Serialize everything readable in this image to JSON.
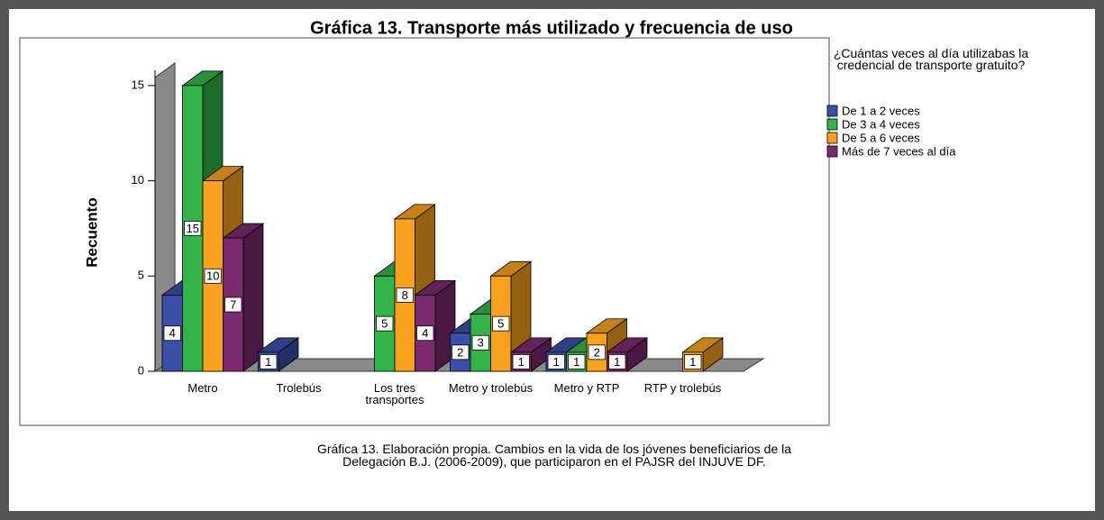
{
  "chart_data": {
    "type": "bar3d",
    "title": "Gráfica 13. Transporte más utilizado y frecuencia de uso",
    "y_label": "Recuento",
    "legend_title": "¿Cuántas veces al día utilizabas la credencial de transporte gratuito?",
    "categories": [
      "Metro",
      "Trolebús",
      "Los tres transportes",
      "Metro y trolebús",
      "Metro y RTP",
      "RTP y trolebús"
    ],
    "series": [
      {
        "name": "De 1 a 2 veces",
        "color": "#3b4fa8",
        "values": [
          4,
          1,
          null,
          2,
          1,
          null
        ]
      },
      {
        "name": "De 3 a 4 veces",
        "color": "#34b34a",
        "values": [
          15,
          null,
          5,
          3,
          1,
          null
        ]
      },
      {
        "name": "De 5 a 6 veces",
        "color": "#f8a21f",
        "values": [
          10,
          null,
          8,
          5,
          2,
          1
        ]
      },
      {
        "name": "Más de 7 veces al día",
        "color": "#7c2a6f",
        "values": [
          7,
          null,
          4,
          1,
          1,
          null
        ]
      }
    ],
    "ylim": [
      0,
      15.8
    ],
    "yticks": [
      0,
      5,
      10,
      15
    ],
    "caption": [
      "Gráfica 13. Elaboración propia.  Cambios en  la vida de los jóvenes beneficiarios de la",
      "Delegación B.J. (2006-2009), que participaron en el PAJSR del INJUVE DF."
    ]
  }
}
